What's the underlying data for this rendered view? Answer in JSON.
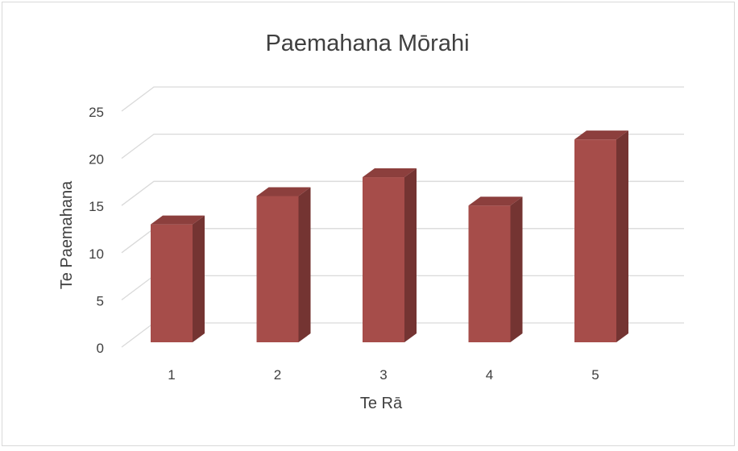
{
  "chart_data": {
    "type": "bar",
    "title": "Paemahana Mōrahi",
    "xlabel": "Te Rā",
    "ylabel": "Te Paemahana",
    "categories": [
      "1",
      "2",
      "3",
      "4",
      "5"
    ],
    "values": [
      13,
      16,
      18,
      15,
      22
    ],
    "ylim": [
      0,
      25
    ],
    "yticks": [
      0,
      5,
      10,
      15,
      20,
      25
    ],
    "grid": true,
    "legend": "none",
    "three_d": true,
    "colors": {
      "bar_front": "#A64D4A",
      "bar_side": "#743432",
      "bar_top": "#8C3F3D",
      "grid": "#d9d9d9",
      "text": "#404040"
    }
  }
}
